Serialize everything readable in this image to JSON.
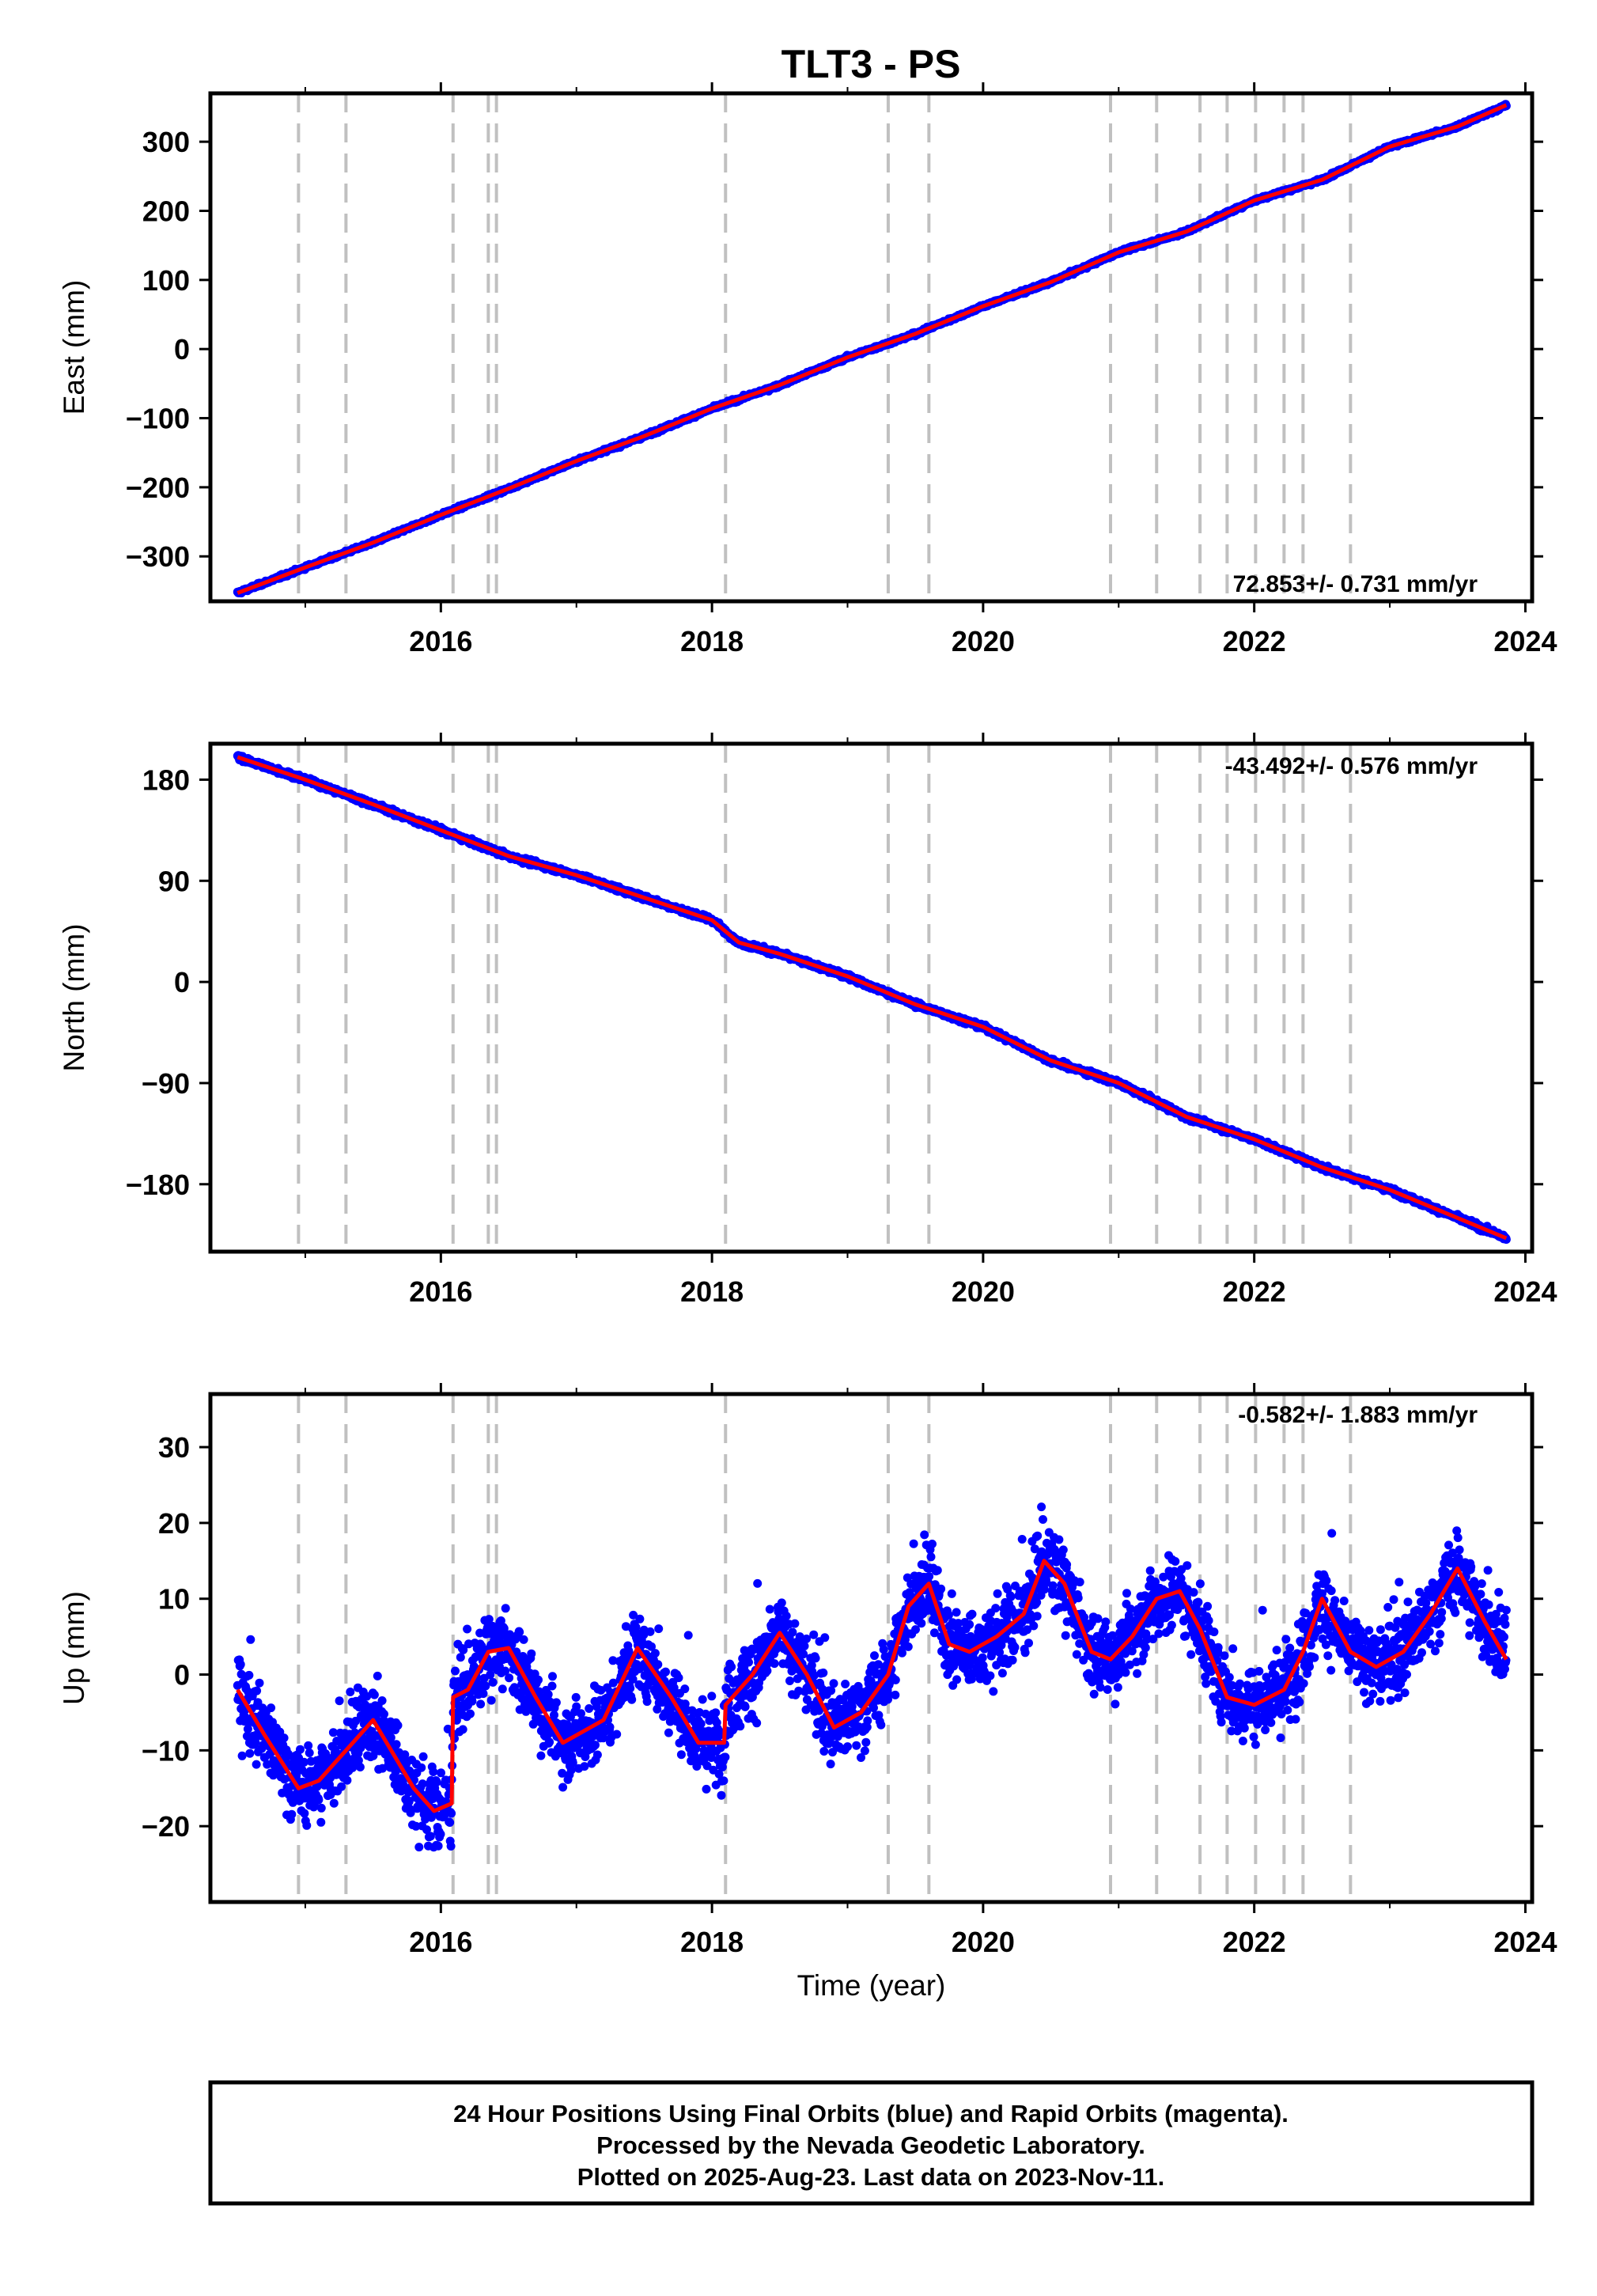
{
  "title": "TLT3 - PS",
  "footer": {
    "line1": "24 Hour Positions Using Final Orbits (blue) and Rapid Orbits (magenta).",
    "line2": "Processed by the Nevada Geodetic Laboratory.",
    "line3": "Plotted on 2025-Aug-23. Last data on 2023-Nov-11."
  },
  "colors": {
    "points": "#0000ff",
    "model": "#ff0000",
    "break_lines": "#c0c0c0",
    "frame": "#000000"
  },
  "chart_data": [
    {
      "type": "scatter",
      "panel": "east",
      "ylabel": "East (mm)",
      "xlabel": "",
      "xlim": [
        2014.3,
        2024.05
      ],
      "ylim": [
        -365,
        370
      ],
      "xticks": [
        2016,
        2018,
        2020,
        2022,
        2024
      ],
      "yticks": [
        -300,
        -200,
        -100,
        0,
        100,
        200,
        300
      ],
      "ytick_labels": [
        "−300",
        "−200",
        "−100",
        "0",
        "100",
        "200",
        "300"
      ],
      "rate_label": "72.853+/- 0.731 mm/yr",
      "data_span": [
        2014.5,
        2023.86
      ],
      "break_epochs": [
        2014.95,
        2015.3,
        2016.09,
        2016.35,
        2016.41,
        2018.1,
        2019.3,
        2019.6,
        2020.94,
        2021.28,
        2021.6,
        2021.8,
        2022.01,
        2022.22,
        2022.36,
        2022.71
      ],
      "series": [
        {
          "role": "model",
          "x": [
            2014.5,
            2015.0,
            2015.5,
            2016.0,
            2016.5,
            2017.0,
            2017.5,
            2018.0,
            2018.5,
            2019.0,
            2019.5,
            2020.0,
            2020.5,
            2021.0,
            2021.5,
            2022.0,
            2022.5,
            2023.0,
            2023.5,
            2023.86
          ],
          "y": [
            -353,
            -316,
            -280,
            -240,
            -202,
            -162,
            -126,
            -86,
            -52,
            -12,
            22,
            62,
            97,
            140,
            170,
            215,
            245,
            293,
            322,
            353
          ]
        }
      ]
    },
    {
      "type": "scatter",
      "panel": "north",
      "ylabel": "North (mm)",
      "xlabel": "",
      "xlim": [
        2014.3,
        2024.05
      ],
      "ylim": [
        -240,
        212
      ],
      "xticks": [
        2016,
        2018,
        2020,
        2022,
        2024
      ],
      "yticks": [
        -180,
        -90,
        0,
        90,
        180
      ],
      "ytick_labels": [
        "−180",
        "−90",
        "0",
        "90",
        "180"
      ],
      "rate_label": "-43.492+/- 0.576 mm/yr",
      "data_span": [
        2014.5,
        2023.86
      ],
      "break_epochs": [
        2014.95,
        2015.3,
        2016.09,
        2016.35,
        2016.41,
        2018.1,
        2019.3,
        2019.6,
        2020.94,
        2021.28,
        2021.6,
        2021.8,
        2022.01,
        2022.22,
        2022.36,
        2022.71
      ],
      "series": [
        {
          "role": "model",
          "x": [
            2014.5,
            2015.0,
            2015.5,
            2016.0,
            2016.5,
            2017.0,
            2017.5,
            2018.0,
            2018.2,
            2018.5,
            2019.0,
            2019.5,
            2020.0,
            2020.5,
            2021.0,
            2021.5,
            2022.0,
            2022.5,
            2023.0,
            2023.5,
            2023.86
          ],
          "y": [
            200,
            180,
            158,
            135,
            112,
            95,
            75,
            55,
            35,
            25,
            5,
            -20,
            -40,
            -70,
            -90,
            -120,
            -140,
            -165,
            -185,
            -210,
            -228
          ]
        }
      ]
    },
    {
      "type": "scatter",
      "panel": "up",
      "ylabel": "Up (mm)",
      "xlabel": "Time (year)",
      "xlim": [
        2014.3,
        2024.05
      ],
      "ylim": [
        -30,
        37
      ],
      "xticks": [
        2016,
        2018,
        2020,
        2022,
        2024
      ],
      "yticks": [
        -20,
        -10,
        0,
        10,
        20,
        30
      ],
      "ytick_labels": [
        "−20",
        "−10",
        "0",
        "10",
        "20",
        "30"
      ],
      "rate_label": "-0.582+/- 1.883 mm/yr",
      "data_span": [
        2014.5,
        2023.86
      ],
      "break_epochs": [
        2014.95,
        2015.3,
        2016.09,
        2016.35,
        2016.41,
        2018.1,
        2019.3,
        2019.6,
        2020.94,
        2021.28,
        2021.6,
        2021.8,
        2022.01,
        2022.22,
        2022.36,
        2022.71
      ],
      "series": [
        {
          "role": "model",
          "x": [
            2014.5,
            2014.7,
            2014.95,
            2015.1,
            2015.3,
            2015.5,
            2015.8,
            2015.95,
            2016.08,
            2016.09,
            2016.2,
            2016.35,
            2016.5,
            2016.7,
            2016.9,
            2017.2,
            2017.45,
            2017.7,
            2017.9,
            2018.09,
            2018.1,
            2018.3,
            2018.5,
            2018.7,
            2018.9,
            2019.1,
            2019.3,
            2019.45,
            2019.6,
            2019.75,
            2019.9,
            2020.1,
            2020.3,
            2020.45,
            2020.6,
            2020.8,
            2020.94,
            2021.1,
            2021.28,
            2021.45,
            2021.6,
            2021.8,
            2022.0,
            2022.22,
            2022.36,
            2022.5,
            2022.71,
            2022.9,
            2023.1,
            2023.3,
            2023.5,
            2023.7,
            2023.86
          ],
          "y": [
            -2,
            -8,
            -15,
            -14,
            -10,
            -6,
            -15,
            -18,
            -17,
            -3,
            -2,
            3,
            3.5,
            -3,
            -9,
            -6,
            3.5,
            -3,
            -9,
            -9,
            -4,
            0,
            5.5,
            0,
            -7,
            -5,
            0,
            9,
            12,
            4,
            3,
            5,
            8,
            15,
            12,
            3,
            2,
            5,
            10,
            11,
            6,
            -3,
            -4,
            -2,
            3,
            10,
            3,
            1,
            3,
            8,
            14,
            7,
            2
          ]
        }
      ]
    }
  ]
}
